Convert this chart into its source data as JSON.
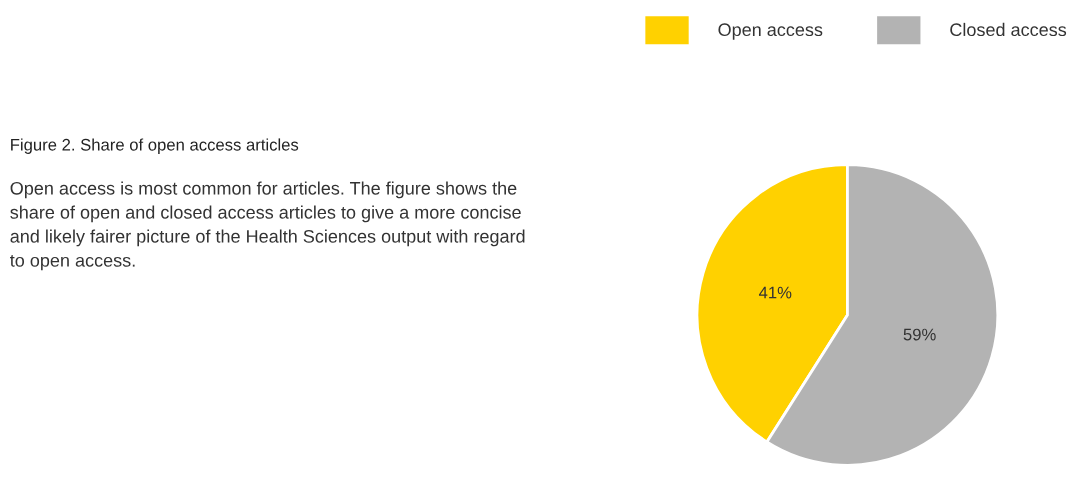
{
  "chart_data": {
    "type": "pie",
    "title": "Figure 2. Share of open access articles",
    "annotations": [
      "Open access is most common for articles. The figure shows the share of open and closed access articles to give a more concise and likely fairer picture of the Health Sciences output with regard to open access."
    ],
    "categories": [
      "Open access",
      "Closed access"
    ],
    "values": [
      41,
      59
    ],
    "value_labels": [
      "41%",
      "59%"
    ],
    "colors": [
      "#ffd100",
      "#b3b3b3"
    ],
    "legend": "top right"
  }
}
